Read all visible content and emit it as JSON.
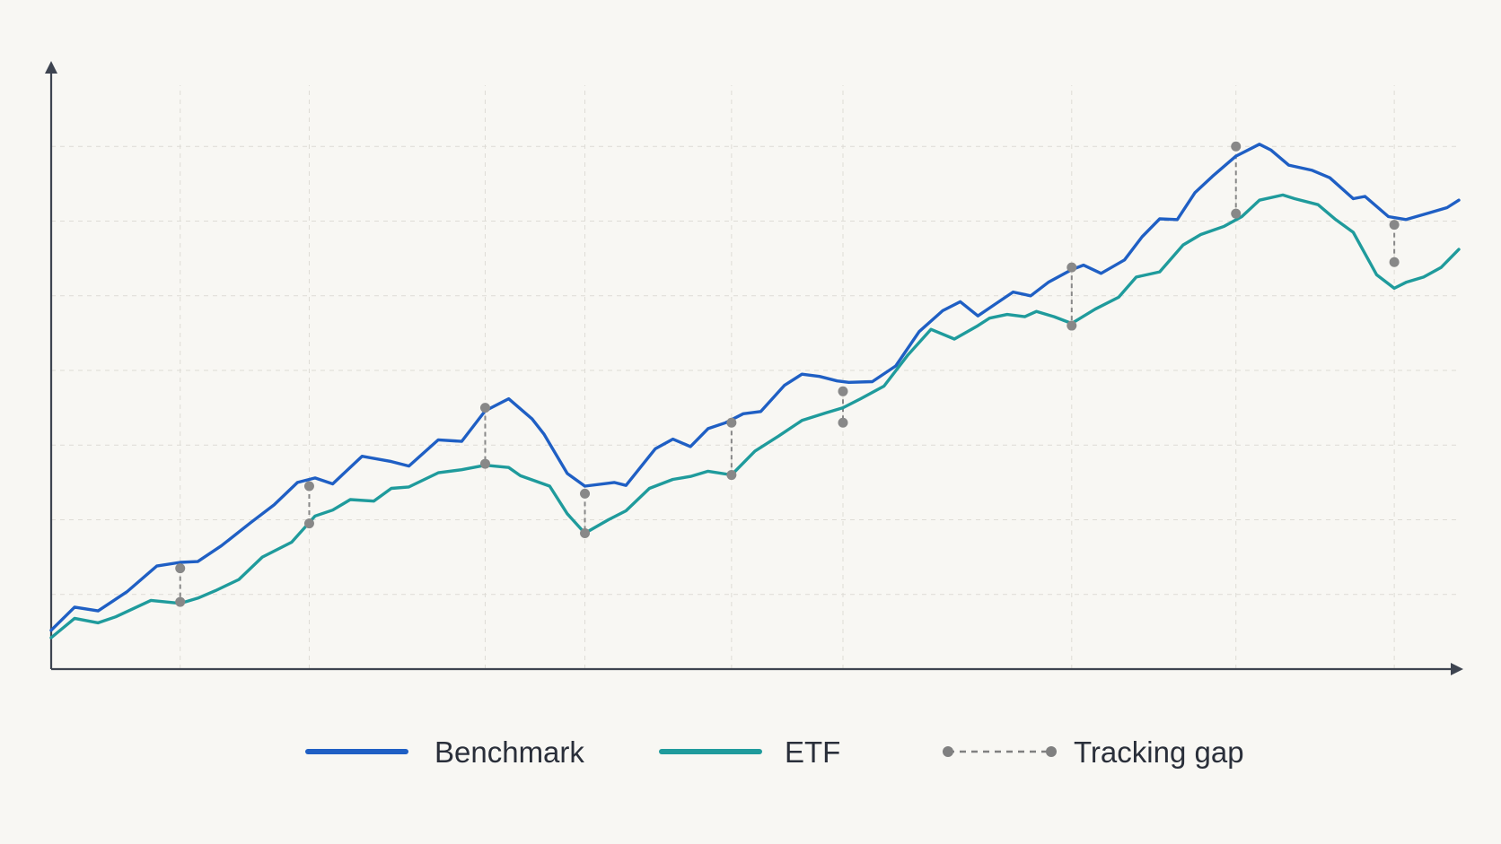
{
  "chart_data": {
    "type": "line",
    "title": "",
    "xlabel": "",
    "ylabel": "",
    "grid": true,
    "legend_position": "bottom-center",
    "x_ticks": [
      0,
      22,
      44,
      74,
      91,
      116,
      135,
      174,
      202,
      229,
      240
    ],
    "y_range": [
      0,
      8
    ],
    "x_range": [
      0,
      240
    ],
    "series": [
      {
        "name": "Benchmark",
        "color": "#1f5fc4",
        "points": [
          [
            0,
            0.52
          ],
          [
            4,
            0.83
          ],
          [
            8,
            0.78
          ],
          [
            13,
            1.04
          ],
          [
            18,
            1.38
          ],
          [
            22,
            1.43
          ],
          [
            25,
            1.44
          ],
          [
            29,
            1.65
          ],
          [
            34,
            1.96
          ],
          [
            38,
            2.2
          ],
          [
            42,
            2.5
          ],
          [
            45,
            2.56
          ],
          [
            48,
            2.48
          ],
          [
            53,
            2.85
          ],
          [
            58,
            2.78
          ],
          [
            61,
            2.72
          ],
          [
            66,
            3.07
          ],
          [
            70,
            3.05
          ],
          [
            74,
            3.46
          ],
          [
            78,
            3.62
          ],
          [
            82,
            3.35
          ],
          [
            84,
            3.15
          ],
          [
            88,
            2.62
          ],
          [
            91,
            2.45
          ],
          [
            96,
            2.5
          ],
          [
            98,
            2.46
          ],
          [
            103,
            2.95
          ],
          [
            106,
            3.08
          ],
          [
            109,
            2.98
          ],
          [
            112,
            3.22
          ],
          [
            115,
            3.3
          ],
          [
            118,
            3.42
          ],
          [
            121,
            3.45
          ],
          [
            125,
            3.8
          ],
          [
            128,
            3.95
          ],
          [
            131,
            3.92
          ],
          [
            134,
            3.86
          ],
          [
            136,
            3.84
          ],
          [
            140,
            3.85
          ],
          [
            144,
            4.06
          ],
          [
            148,
            4.52
          ],
          [
            152,
            4.8
          ],
          [
            155,
            4.92
          ],
          [
            158,
            4.73
          ],
          [
            161,
            4.89
          ],
          [
            164,
            5.05
          ],
          [
            167,
            5.0
          ],
          [
            170,
            5.18
          ],
          [
            174,
            5.35
          ],
          [
            176,
            5.41
          ],
          [
            179,
            5.3
          ],
          [
            183,
            5.48
          ],
          [
            186,
            5.79
          ],
          [
            189,
            6.03
          ],
          [
            192,
            6.02
          ],
          [
            195,
            6.38
          ],
          [
            198,
            6.6
          ],
          [
            202,
            6.87
          ],
          [
            206,
            7.03
          ],
          [
            208,
            6.95
          ],
          [
            211,
            6.75
          ],
          [
            215,
            6.68
          ],
          [
            218,
            6.58
          ],
          [
            222,
            6.3
          ],
          [
            224,
            6.33
          ],
          [
            228,
            6.06
          ],
          [
            231,
            6.02
          ],
          [
            235,
            6.11
          ],
          [
            238,
            6.18
          ],
          [
            240,
            6.28
          ]
        ]
      },
      {
        "name": "ETF",
        "color": "#1f9b9c",
        "points": [
          [
            0,
            0.42
          ],
          [
            4,
            0.68
          ],
          [
            8,
            0.62
          ],
          [
            11,
            0.7
          ],
          [
            17,
            0.92
          ],
          [
            22,
            0.88
          ],
          [
            25,
            0.95
          ],
          [
            28,
            1.05
          ],
          [
            32,
            1.2
          ],
          [
            36,
            1.5
          ],
          [
            41,
            1.7
          ],
          [
            45,
            2.05
          ],
          [
            48,
            2.13
          ],
          [
            51,
            2.27
          ],
          [
            55,
            2.25
          ],
          [
            58,
            2.42
          ],
          [
            61,
            2.44
          ],
          [
            66,
            2.63
          ],
          [
            70,
            2.67
          ],
          [
            74,
            2.73
          ],
          [
            78,
            2.7
          ],
          [
            80,
            2.59
          ],
          [
            85,
            2.45
          ],
          [
            88,
            2.08
          ],
          [
            91,
            1.82
          ],
          [
            95,
            2.0
          ],
          [
            98,
            2.12
          ],
          [
            102,
            2.42
          ],
          [
            106,
            2.54
          ],
          [
            109,
            2.58
          ],
          [
            112,
            2.65
          ],
          [
            116,
            2.6
          ],
          [
            120,
            2.92
          ],
          [
            124,
            3.12
          ],
          [
            128,
            3.33
          ],
          [
            132,
            3.43
          ],
          [
            135,
            3.5
          ],
          [
            138,
            3.62
          ],
          [
            142,
            3.79
          ],
          [
            146,
            4.2
          ],
          [
            150,
            4.55
          ],
          [
            154,
            4.42
          ],
          [
            158,
            4.6
          ],
          [
            160,
            4.7
          ],
          [
            163,
            4.75
          ],
          [
            166,
            4.72
          ],
          [
            168,
            4.79
          ],
          [
            171,
            4.72
          ],
          [
            174,
            4.63
          ],
          [
            178,
            4.82
          ],
          [
            182,
            4.98
          ],
          [
            185,
            5.25
          ],
          [
            189,
            5.32
          ],
          [
            193,
            5.68
          ],
          [
            196,
            5.82
          ],
          [
            200,
            5.93
          ],
          [
            203,
            6.06
          ],
          [
            206,
            6.28
          ],
          [
            210,
            6.35
          ],
          [
            212,
            6.3
          ],
          [
            216,
            6.22
          ],
          [
            219,
            6.02
          ],
          [
            222,
            5.85
          ],
          [
            226,
            5.28
          ],
          [
            229,
            5.1
          ],
          [
            231,
            5.18
          ],
          [
            234,
            5.25
          ],
          [
            237,
            5.38
          ],
          [
            240,
            5.62
          ]
        ]
      }
    ],
    "tracking_gap": {
      "name": "Tracking gap",
      "color": "#888888",
      "markers": [
        {
          "x": 22,
          "upper": 1.35,
          "lower": 0.9
        },
        {
          "x": 44,
          "upper": 2.45,
          "lower": 1.95
        },
        {
          "x": 74,
          "upper": 3.5,
          "lower": 2.75
        },
        {
          "x": 91,
          "upper": 2.35,
          "lower": 1.82
        },
        {
          "x": 116,
          "upper": 3.3,
          "lower": 2.6
        },
        {
          "x": 135,
          "upper": 3.72,
          "lower": 3.3
        },
        {
          "x": 174,
          "upper": 5.38,
          "lower": 4.6
        },
        {
          "x": 202,
          "upper": 7.0,
          "lower": 6.1
        },
        {
          "x": 229,
          "upper": 5.95,
          "lower": 5.45
        }
      ]
    }
  },
  "legend": {
    "benchmark_label": "Benchmark",
    "etf_label": "ETF",
    "gap_label": "Tracking gap"
  }
}
